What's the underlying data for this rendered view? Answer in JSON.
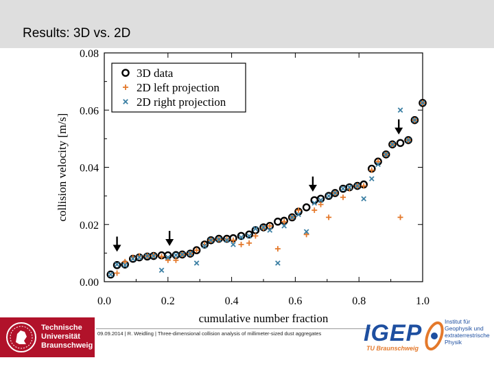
{
  "slide": {
    "title": "Results: 3D vs. 2D",
    "footer": "09.09.2014 | R. Weidling | Three-dimensional collision analysis of millimeter-sized dust aggregates"
  },
  "logos": {
    "tu_name": "Technische\nUniversität\nBraunschweig",
    "igep_word": "IGEP",
    "igep_sub": "TU Braunschweig",
    "institute_name": "Institut für\nGeophysik und\nextraterrestrische\nPhysik"
  },
  "colors": {
    "tu_red": "#b1122a",
    "orange": "#e4792b",
    "blue": "#3b7fa3",
    "igep_blue": "#1e4fa0"
  },
  "chart_data": {
    "type": "scatter",
    "xlabel": "cumulative number fraction",
    "ylabel": "collision velocity [m/s]",
    "xlim": [
      0.0,
      1.0
    ],
    "ylim": [
      0.0,
      0.08
    ],
    "xticks": [
      "0.0",
      "0.2",
      "0.4",
      "0.6",
      "0.8",
      "1.0"
    ],
    "yticks": [
      "0.00",
      "0.02",
      "0.04",
      "0.06",
      "0.08"
    ],
    "legend_position": "top-left",
    "series": [
      {
        "name": "3D data",
        "marker": "circle",
        "points": [
          [
            0.02,
            0.0025
          ],
          [
            0.04,
            0.0058
          ],
          [
            0.065,
            0.006
          ],
          [
            0.09,
            0.008
          ],
          [
            0.11,
            0.0085
          ],
          [
            0.135,
            0.0088
          ],
          [
            0.155,
            0.009
          ],
          [
            0.18,
            0.0092
          ],
          [
            0.2,
            0.0092
          ],
          [
            0.225,
            0.0093
          ],
          [
            0.245,
            0.0095
          ],
          [
            0.27,
            0.0098
          ],
          [
            0.29,
            0.011
          ],
          [
            0.315,
            0.013
          ],
          [
            0.335,
            0.0145
          ],
          [
            0.36,
            0.015
          ],
          [
            0.385,
            0.015
          ],
          [
            0.405,
            0.0152
          ],
          [
            0.43,
            0.016
          ],
          [
            0.455,
            0.0165
          ],
          [
            0.475,
            0.018
          ],
          [
            0.5,
            0.019
          ],
          [
            0.52,
            0.0195
          ],
          [
            0.545,
            0.021
          ],
          [
            0.565,
            0.0213
          ],
          [
            0.59,
            0.0225
          ],
          [
            0.61,
            0.0245
          ],
          [
            0.635,
            0.026
          ],
          [
            0.66,
            0.0285
          ],
          [
            0.68,
            0.029
          ],
          [
            0.705,
            0.03
          ],
          [
            0.725,
            0.031
          ],
          [
            0.75,
            0.0325
          ],
          [
            0.77,
            0.033
          ],
          [
            0.795,
            0.0335
          ],
          [
            0.815,
            0.034
          ],
          [
            0.84,
            0.0395
          ],
          [
            0.86,
            0.042
          ],
          [
            0.885,
            0.0445
          ],
          [
            0.905,
            0.048
          ],
          [
            0.93,
            0.0485
          ],
          [
            0.955,
            0.0495
          ],
          [
            0.975,
            0.0565
          ],
          [
            1.0,
            0.0625
          ]
        ]
      },
      {
        "name": "2D left projection",
        "marker": "plus",
        "points": [
          [
            0.04,
            0.003
          ],
          [
            0.065,
            0.007
          ],
          [
            0.09,
            0.0085
          ],
          [
            0.11,
            0.009
          ],
          [
            0.135,
            0.009
          ],
          [
            0.155,
            0.0092
          ],
          [
            0.18,
            0.0088
          ],
          [
            0.2,
            0.0075
          ],
          [
            0.225,
            0.0075
          ],
          [
            0.245,
            0.0095
          ],
          [
            0.27,
            0.0098
          ],
          [
            0.29,
            0.011
          ],
          [
            0.315,
            0.013
          ],
          [
            0.335,
            0.0145
          ],
          [
            0.36,
            0.0148
          ],
          [
            0.385,
            0.0148
          ],
          [
            0.405,
            0.0145
          ],
          [
            0.43,
            0.013
          ],
          [
            0.455,
            0.0135
          ],
          [
            0.475,
            0.016
          ],
          [
            0.5,
            0.0188
          ],
          [
            0.52,
            0.0195
          ],
          [
            0.545,
            0.0115
          ],
          [
            0.565,
            0.021
          ],
          [
            0.59,
            0.0225
          ],
          [
            0.61,
            0.025
          ],
          [
            0.635,
            0.0165
          ],
          [
            0.66,
            0.025
          ],
          [
            0.68,
            0.027
          ],
          [
            0.705,
            0.0225
          ],
          [
            0.725,
            0.031
          ],
          [
            0.75,
            0.0295
          ],
          [
            0.77,
            0.0325
          ],
          [
            0.795,
            0.0335
          ],
          [
            0.815,
            0.0335
          ],
          [
            0.84,
            0.039
          ],
          [
            0.86,
            0.042
          ],
          [
            0.885,
            0.0445
          ],
          [
            0.905,
            0.048
          ],
          [
            0.93,
            0.0225
          ],
          [
            0.955,
            0.0495
          ],
          [
            0.975,
            0.0565
          ],
          [
            1.0,
            0.0625
          ]
        ]
      },
      {
        "name": "2D right projection",
        "marker": "x",
        "points": [
          [
            0.02,
            0.0025
          ],
          [
            0.04,
            0.006
          ],
          [
            0.065,
            0.0058
          ],
          [
            0.09,
            0.008
          ],
          [
            0.11,
            0.0085
          ],
          [
            0.135,
            0.009
          ],
          [
            0.155,
            0.009
          ],
          [
            0.18,
            0.004
          ],
          [
            0.2,
            0.0085
          ],
          [
            0.225,
            0.0093
          ],
          [
            0.245,
            0.0095
          ],
          [
            0.27,
            0.0098
          ],
          [
            0.29,
            0.0065
          ],
          [
            0.315,
            0.0125
          ],
          [
            0.335,
            0.0145
          ],
          [
            0.36,
            0.0148
          ],
          [
            0.385,
            0.0145
          ],
          [
            0.405,
            0.013
          ],
          [
            0.43,
            0.0155
          ],
          [
            0.455,
            0.016
          ],
          [
            0.475,
            0.0185
          ],
          [
            0.5,
            0.019
          ],
          [
            0.52,
            0.018
          ],
          [
            0.545,
            0.0065
          ],
          [
            0.565,
            0.0195
          ],
          [
            0.59,
            0.0225
          ],
          [
            0.61,
            0.0235
          ],
          [
            0.635,
            0.0175
          ],
          [
            0.66,
            0.0275
          ],
          [
            0.68,
            0.0285
          ],
          [
            0.705,
            0.03
          ],
          [
            0.725,
            0.031
          ],
          [
            0.75,
            0.0325
          ],
          [
            0.77,
            0.033
          ],
          [
            0.795,
            0.0335
          ],
          [
            0.815,
            0.029
          ],
          [
            0.84,
            0.036
          ],
          [
            0.86,
            0.041
          ],
          [
            0.885,
            0.0445
          ],
          [
            0.905,
            0.048
          ],
          [
            0.93,
            0.06
          ],
          [
            0.955,
            0.0495
          ],
          [
            0.975,
            0.0565
          ],
          [
            1.0,
            0.0625
          ]
        ]
      }
    ],
    "arrows": [
      [
        0.04,
        0.01
      ],
      [
        0.205,
        0.012
      ],
      [
        0.655,
        0.031
      ],
      [
        0.925,
        0.051
      ]
    ]
  }
}
